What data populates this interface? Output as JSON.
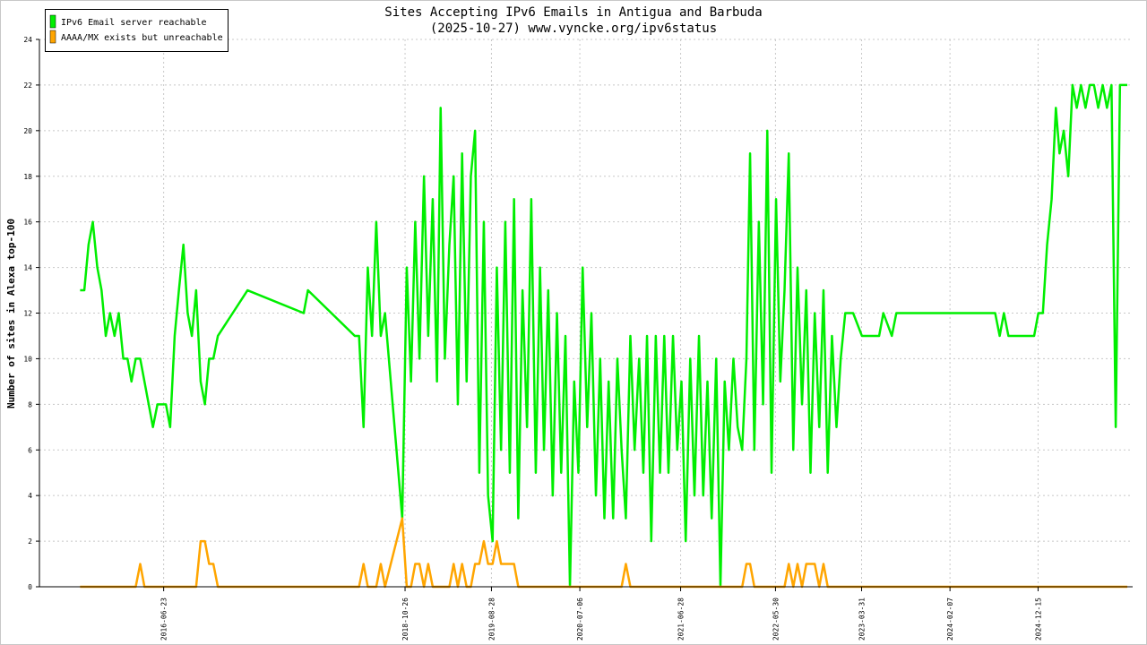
{
  "chart_data": {
    "type": "line",
    "title": "Sites Accepting IPv6 Emails in Antigua and Barbuda",
    "subtitle": "(2025-10-27) www.vyncke.org/ipv6status",
    "y_label": "Number of sites in Alexa top-100",
    "x": [
      "2015-09-01",
      "2015-09-16",
      "2015-10-01",
      "2015-10-16",
      "2015-11-01",
      "2015-11-16",
      "2015-12-01",
      "2015-12-16",
      "2016-01-01",
      "2016-01-16",
      "2016-02-01",
      "2016-02-16",
      "2016-03-01",
      "2016-03-16",
      "2016-04-01",
      "2016-04-16",
      "2016-05-01",
      "2016-05-16",
      "2016-06-01",
      "2016-06-16",
      "2016-07-01",
      "2016-07-16",
      "2016-08-01",
      "2016-08-16",
      "2016-09-01",
      "2016-09-16",
      "2016-10-01",
      "2016-10-16",
      "2016-11-01",
      "2016-11-16",
      "2016-12-01",
      "2016-12-16",
      "2017-01-01",
      "2017-04-16",
      "2017-11-01",
      "2017-11-16",
      "2018-05-01",
      "2018-05-16",
      "2018-06-01",
      "2018-06-16",
      "2018-07-01",
      "2018-07-16",
      "2018-08-01",
      "2018-08-16",
      "2018-10-16",
      "2018-11-01",
      "2018-11-16",
      "2018-12-01",
      "2018-12-16",
      "2019-01-01",
      "2019-01-16",
      "2019-02-01",
      "2019-02-16",
      "2019-03-01",
      "2019-03-16",
      "2019-04-01",
      "2019-04-16",
      "2019-05-01",
      "2019-05-16",
      "2019-06-01",
      "2019-06-16",
      "2019-07-01",
      "2019-07-16",
      "2019-08-01",
      "2019-08-16",
      "2019-09-01",
      "2019-09-16",
      "2019-10-01",
      "2019-10-16",
      "2019-11-01",
      "2019-11-16",
      "2019-12-01",
      "2019-12-16",
      "2020-01-01",
      "2020-01-16",
      "2020-02-01",
      "2020-02-16",
      "2020-03-01",
      "2020-03-16",
      "2020-04-01",
      "2020-04-16",
      "2020-05-01",
      "2020-05-16",
      "2020-06-01",
      "2020-06-16",
      "2020-07-01",
      "2020-07-16",
      "2020-08-01",
      "2020-08-16",
      "2020-09-01",
      "2020-09-16",
      "2020-10-01",
      "2020-10-16",
      "2020-11-01",
      "2020-11-16",
      "2020-12-01",
      "2020-12-16",
      "2021-01-01",
      "2021-01-16",
      "2021-02-01",
      "2021-02-16",
      "2021-03-01",
      "2021-03-16",
      "2021-04-01",
      "2021-04-16",
      "2021-05-01",
      "2021-05-16",
      "2021-06-01",
      "2021-06-16",
      "2021-07-01",
      "2021-07-16",
      "2021-08-01",
      "2021-08-16",
      "2021-09-01",
      "2021-09-16",
      "2021-10-01",
      "2021-10-16",
      "2021-11-01",
      "2021-11-16",
      "2021-12-01",
      "2021-12-16",
      "2022-01-01",
      "2022-01-16",
      "2022-02-01",
      "2022-02-16",
      "2022-03-01",
      "2022-03-16",
      "2022-04-01",
      "2022-04-16",
      "2022-05-01",
      "2022-05-16",
      "2022-06-01",
      "2022-06-16",
      "2022-07-01",
      "2022-07-16",
      "2022-08-01",
      "2022-08-16",
      "2022-09-01",
      "2022-09-16",
      "2022-10-01",
      "2022-10-16",
      "2022-11-01",
      "2022-11-16",
      "2022-12-01",
      "2022-12-16",
      "2023-01-01",
      "2023-01-16",
      "2023-02-01",
      "2023-03-01",
      "2023-04-01",
      "2023-06-01",
      "2023-06-16",
      "2023-07-16",
      "2023-08-01",
      "2024-04-16",
      "2024-06-01",
      "2024-07-16",
      "2024-08-01",
      "2024-08-16",
      "2024-09-01",
      "2024-11-16",
      "2024-12-01",
      "2024-12-16",
      "2025-01-01",
      "2025-01-16",
      "2025-02-01",
      "2025-02-16",
      "2025-03-01",
      "2025-03-16",
      "2025-04-01",
      "2025-04-16",
      "2025-05-01",
      "2025-05-16",
      "2025-06-01",
      "2025-06-16",
      "2025-07-01",
      "2025-07-16",
      "2025-08-01",
      "2025-08-16",
      "2025-09-01",
      "2025-09-16",
      "2025-10-01",
      "2025-10-27"
    ],
    "series": [
      {
        "name": "IPv6 Email server reachable",
        "color": "#00ee00",
        "values": [
          13,
          13,
          15,
          16,
          14,
          13,
          11,
          12,
          11,
          12,
          10,
          10,
          9,
          10,
          10,
          9,
          8,
          7,
          8,
          8,
          8,
          7,
          11,
          13,
          15,
          12,
          11,
          13,
          9,
          8,
          10,
          10,
          11,
          13,
          12,
          13,
          11,
          11,
          7,
          14,
          11,
          16,
          11,
          12,
          3,
          14,
          9,
          16,
          10,
          18,
          11,
          17,
          9,
          21,
          10,
          15,
          18,
          8,
          19,
          9,
          18,
          20,
          5,
          16,
          4,
          2,
          14,
          6,
          16,
          5,
          17,
          3,
          13,
          7,
          17,
          5,
          14,
          6,
          13,
          4,
          12,
          5,
          11,
          0,
          9,
          5,
          14,
          7,
          12,
          4,
          10,
          3,
          9,
          3,
          10,
          6,
          3,
          11,
          6,
          10,
          5,
          11,
          2,
          11,
          5,
          11,
          5,
          11,
          6,
          9,
          2,
          10,
          4,
          11,
          4,
          9,
          3,
          10,
          0,
          9,
          6,
          10,
          7,
          6,
          10,
          19,
          6,
          16,
          8,
          20,
          5,
          17,
          9,
          13,
          19,
          6,
          14,
          8,
          13,
          5,
          12,
          7,
          13,
          5,
          11,
          7,
          10,
          12,
          12,
          11,
          11,
          12,
          11,
          12,
          12,
          12,
          12,
          11,
          12,
          11,
          11,
          11,
          12,
          12,
          15,
          17,
          21,
          19,
          20,
          18,
          22,
          21,
          22,
          21,
          22,
          22,
          21,
          22,
          21,
          22,
          7,
          22,
          22
        ]
      },
      {
        "name": "AAAA/MX exists but unreachable",
        "color": "#ffa500",
        "values": [
          0,
          0,
          0,
          0,
          0,
          0,
          0,
          0,
          0,
          0,
          0,
          0,
          0,
          0,
          1,
          0,
          0,
          0,
          0,
          0,
          0,
          0,
          0,
          0,
          0,
          0,
          0,
          0,
          2,
          2,
          1,
          1,
          0,
          0,
          0,
          0,
          0,
          0,
          1,
          0,
          0,
          0,
          1,
          0,
          3,
          0,
          0,
          1,
          1,
          0,
          1,
          0,
          0,
          0,
          0,
          0,
          1,
          0,
          1,
          0,
          0,
          1,
          1,
          2,
          1,
          1,
          2,
          1,
          1,
          1,
          1,
          0,
          0,
          0,
          0,
          0,
          0,
          0,
          0,
          0,
          0,
          0,
          0,
          0,
          0,
          0,
          0,
          0,
          0,
          0,
          0,
          0,
          0,
          0,
          0,
          0,
          1,
          0,
          0,
          0,
          0,
          0,
          0,
          0,
          0,
          0,
          0,
          0,
          0,
          0,
          0,
          0,
          0,
          0,
          0,
          0,
          0,
          0,
          0,
          0,
          0,
          0,
          0,
          0,
          1,
          1,
          0,
          0,
          0,
          0,
          0,
          0,
          0,
          0,
          1,
          0,
          1,
          0,
          1,
          1,
          1,
          0,
          1,
          0,
          0,
          0,
          0,
          0,
          0,
          0,
          0,
          0,
          0,
          0,
          0,
          0,
          0,
          0,
          0,
          0,
          0,
          0,
          0,
          0,
          0,
          0,
          0,
          0,
          0,
          0,
          0,
          0,
          0,
          0,
          0,
          0,
          0,
          0,
          0,
          0,
          0,
          0,
          0
        ]
      }
    ],
    "xlim": [
      "2015-04-10",
      "2025-11-15"
    ],
    "xticks": [
      "2016-06-23",
      "2018-10-26",
      "2019-08-28",
      "2020-07-06",
      "2021-06-28",
      "2022-05-30",
      "2023-03-31",
      "2024-02-07",
      "2024-12-15"
    ],
    "ylim": [
      0,
      24
    ],
    "yticks": [
      0,
      2,
      4,
      6,
      8,
      10,
      12,
      14,
      16,
      18,
      20,
      22,
      24
    ],
    "grid": true,
    "legend": "upper left"
  }
}
